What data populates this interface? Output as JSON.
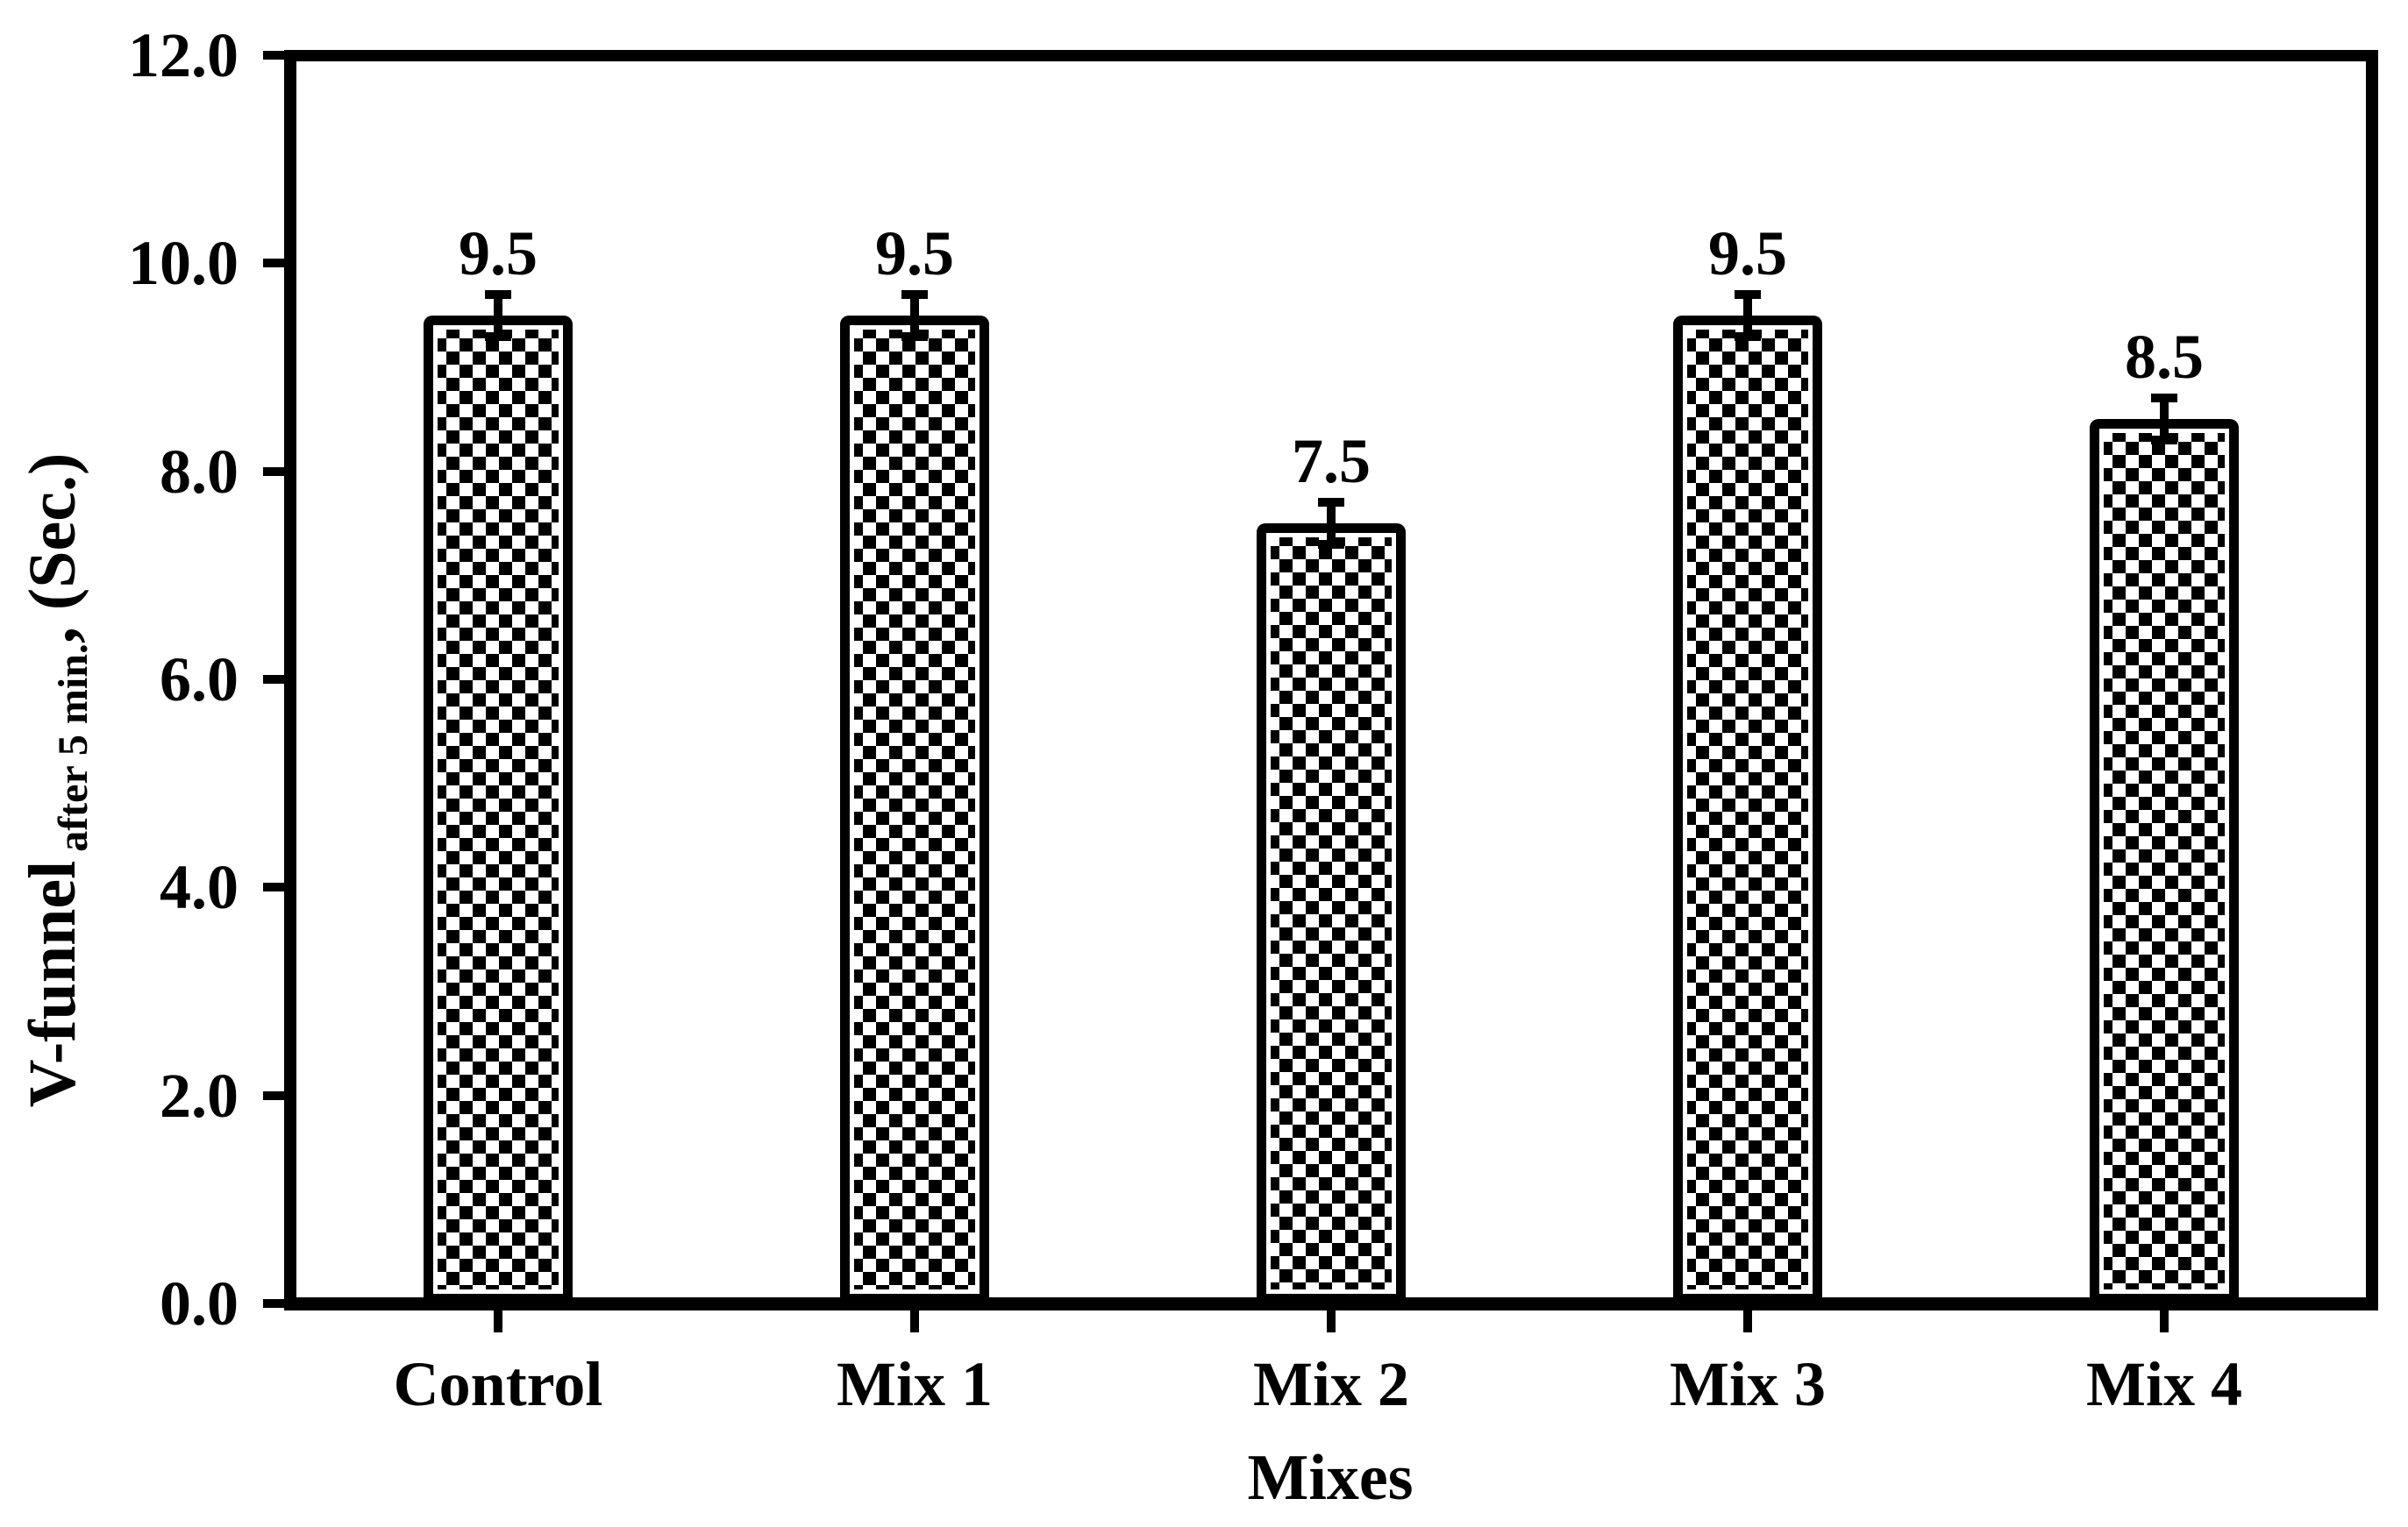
{
  "chart_data": {
    "type": "bar",
    "title": "",
    "categories": [
      "Control",
      "Mix 1",
      "Mix 2",
      "Mix 3",
      "Mix 4"
    ],
    "values": [
      9.5,
      9.5,
      7.5,
      9.5,
      8.5
    ],
    "bar_labels": [
      "9.5",
      "9.5",
      "7.5",
      "9.5",
      "8.5"
    ],
    "error_bars": 0.2,
    "xlabel": "Mixes",
    "ylabel_main": "V-funnel",
    "ylabel_sub": "after 5 min.",
    "ylabel_unit": ", (Sec.)",
    "ylim": [
      0,
      12
    ],
    "yticks": [
      "0.0",
      "2.0",
      "4.0",
      "6.0",
      "8.0",
      "10.0",
      "12.0"
    ],
    "grid": false,
    "legend_position": "none",
    "bar_fill_pattern": "checkerboard",
    "colors": {
      "foreground": "#000000",
      "background": "#ffffff"
    }
  }
}
